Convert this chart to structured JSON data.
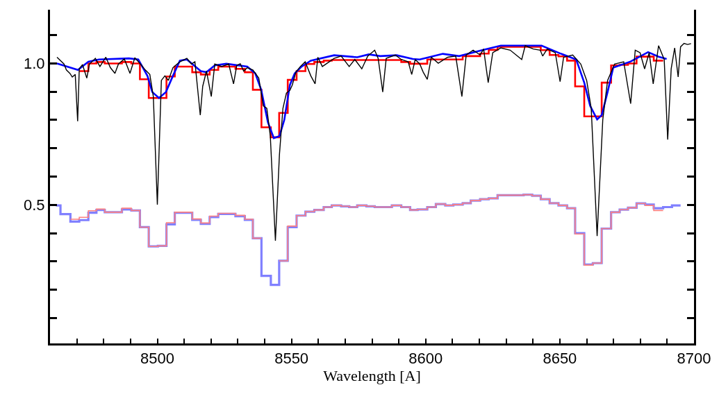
{
  "chart_data": {
    "type": "line",
    "xlabel": "Wavelength [A]",
    "xlim": [
      8460,
      8700
    ],
    "ylim": [
      0.01,
      1.19
    ],
    "xticks": [
      {
        "value": 8470,
        "label": null
      },
      {
        "value": 8480,
        "label": null
      },
      {
        "value": 8490,
        "label": null
      },
      8500,
      {
        "value": 8510,
        "label": null
      },
      {
        "value": 8520,
        "label": null
      },
      {
        "value": 8530,
        "label": null
      },
      {
        "value": 8540,
        "label": null
      },
      8550,
      {
        "value": 8560,
        "label": null
      },
      {
        "value": 8570,
        "label": null
      },
      {
        "value": 8580,
        "label": null
      },
      {
        "value": 8590,
        "label": null
      },
      8600,
      {
        "value": 8610,
        "label": null
      },
      {
        "value": 8620,
        "label": null
      },
      {
        "value": 8630,
        "label": null
      },
      {
        "value": 8640,
        "label": null
      },
      8650,
      {
        "value": 8660,
        "label": null
      },
      {
        "value": 8670,
        "label": null
      },
      {
        "value": 8680,
        "label": null
      },
      {
        "value": 8690,
        "label": null
      },
      8700
    ],
    "yticks": [
      {
        "value": 0.1,
        "label": null
      },
      {
        "value": 0.2,
        "label": null
      },
      {
        "value": 0.3,
        "label": null
      },
      {
        "value": 0.4,
        "label": null
      },
      {
        "value": 0.5,
        "label": "0.5"
      },
      {
        "value": 0.6,
        "label": null
      },
      {
        "value": 0.7,
        "label": null
      },
      {
        "value": 0.8,
        "label": null
      },
      {
        "value": 0.9,
        "label": null
      },
      {
        "value": 1.0,
        "label": "1.0"
      },
      {
        "value": 1.1,
        "label": null
      }
    ],
    "marker": "none",
    "line_style": "solid",
    "series": [
      {
        "type": "step",
        "color": "#8080ff",
        "x": [
          8462.2,
          8463.9,
          8467.6,
          8470.9,
          8474.3,
          8477.3,
          8480.4,
          8486.8,
          8490.3,
          8493.5,
          8496.8,
          8500.2,
          8503.4,
          8506.5,
          8513.0,
          8516.2,
          8519.5,
          8522.7,
          8529.1,
          8532.6,
          8535.6,
          8538.8,
          8542.3,
          8545.4,
          8548.6,
          8551.9,
          8555.2,
          8558.5,
          8562.0,
          8565.0,
          8568.5,
          8571.5,
          8574.5,
          8577.9,
          8581.0,
          8587.4,
          8590.9,
          8594.2,
          8597.0,
          8600.6,
          8603.8,
          8607.3,
          8610.3,
          8613.8,
          8616.8,
          8620.3,
          8623.5,
          8626.8,
          8636.5,
          8639.7,
          8642.9,
          8646.2,
          8649.5,
          8652.7,
          8655.7,
          8659.1,
          8662.3,
          8665.6,
          8669.1,
          8672.3,
          8675.4,
          8678.6,
          8681.8,
          8685.0,
          8688.5,
          8691.8,
          8695.0
        ],
        "values": [
          0.498,
          0.467,
          0.441,
          0.446,
          0.472,
          0.482,
          0.474,
          0.484,
          0.48,
          0.421,
          0.353,
          0.355,
          0.431,
          0.472,
          0.447,
          0.433,
          0.457,
          0.468,
          0.46,
          0.447,
          0.382,
          0.249,
          0.217,
          0.302,
          0.421,
          0.462,
          0.476,
          0.482,
          0.492,
          0.498,
          0.495,
          0.492,
          0.498,
          0.495,
          0.492,
          0.498,
          0.492,
          0.482,
          0.484,
          0.492,
          0.503,
          0.498,
          0.501,
          0.506,
          0.515,
          0.52,
          0.523,
          0.534,
          0.536,
          0.532,
          0.52,
          0.506,
          0.498,
          0.488,
          0.4,
          0.289,
          0.294,
          0.416,
          0.474,
          0.483,
          0.49,
          0.505,
          0.501,
          0.488,
          0.492,
          0.498,
          0.498
        ]
      },
      {
        "type": "step",
        "color": "#ff8080",
        "x": [
          8467.6,
          8470.9,
          8474.3,
          8477.3,
          8480.4,
          8486.8,
          8490.3,
          8493.5,
          8496.8,
          8500.2,
          8503.4,
          8506.5,
          8513.0,
          8516.2,
          8519.5,
          8522.7,
          8529.1,
          8532.6,
          8535.6,
          8538.8,
          8542.3,
          8545.4,
          8548.6,
          8551.9,
          8555.2,
          8558.5,
          8562.0,
          8565.0,
          8568.5,
          8571.5,
          8574.5,
          8577.9,
          8581.0,
          8587.4,
          8590.9,
          8594.2,
          8597.0,
          8600.6,
          8603.8,
          8607.3,
          8610.3,
          8613.8,
          8616.8,
          8620.3,
          8623.5,
          8626.8,
          8636.5,
          8639.7,
          8642.9,
          8646.2,
          8649.5,
          8652.7,
          8655.7,
          8659.1,
          8662.3,
          8665.6,
          8669.1,
          8672.3,
          8675.4,
          8678.6,
          8681.8,
          8685.0,
          8688.5
        ],
        "values": [
          0.449,
          0.456,
          0.479,
          0.485,
          0.474,
          0.488,
          0.48,
          0.421,
          0.353,
          0.355,
          0.437,
          0.474,
          0.45,
          0.436,
          0.46,
          0.47,
          0.463,
          0.449,
          0.382,
          null,
          null,
          0.302,
          0.425,
          0.462,
          0.476,
          0.482,
          0.492,
          0.498,
          0.495,
          0.492,
          0.498,
          0.495,
          0.492,
          0.498,
          0.492,
          0.482,
          0.484,
          0.492,
          0.503,
          0.498,
          0.501,
          0.506,
          0.515,
          0.52,
          0.523,
          0.534,
          0.536,
          0.532,
          0.52,
          0.506,
          0.498,
          0.488,
          0.397,
          0.287,
          0.294,
          0.416,
          0.474,
          0.483,
          0.49,
          0.505,
          0.498,
          0.48,
          0.48
        ]
      },
      {
        "type": "step",
        "color": "#ff0000",
        "x": [
          8470.9,
          8474.3,
          8477.3,
          8480.4,
          8486.8,
          8490.3,
          8493.5,
          8496.8,
          8500.2,
          8503.4,
          8506.5,
          8513.0,
          8516.2,
          8519.5,
          8522.7,
          8529.1,
          8532.6,
          8535.6,
          8538.8,
          8542.3,
          8545.4,
          8548.6,
          8551.9,
          8555.2,
          8558.5,
          8562.0,
          8565.0,
          8581.0,
          8590.9,
          8594.2,
          8600.6,
          8613.8,
          8620.3,
          8623.5,
          8626.8,
          8642.9,
          8646.2,
          8649.5,
          8652.7,
          8655.7,
          8659.1,
          8665.6,
          8669.1,
          8672.3,
          8675.4,
          8678.6,
          8685.0,
          8688.5
        ],
        "values": [
          0.973,
          1.0,
          1.005,
          1.0,
          1.005,
          1.0,
          0.944,
          0.878,
          0.878,
          0.954,
          0.989,
          0.969,
          0.961,
          0.977,
          0.989,
          0.981,
          0.969,
          0.907,
          0.774,
          0.739,
          0.825,
          0.942,
          0.973,
          0.998,
          1.005,
          1.01,
          1.012,
          1.012,
          1.005,
          0.999,
          1.014,
          1.026,
          1.035,
          1.048,
          1.059,
          1.047,
          1.03,
          1.025,
          1.01,
          0.919,
          0.813,
          0.932,
          0.993,
          0.995,
          1.0,
          1.024,
          1.01,
          1.01
        ]
      },
      {
        "color": "#0000ff",
        "x": [
          8462.6,
          8470.4,
          8474.3,
          8478.2,
          8489.4,
          8492.9,
          8496.3,
          8498.1,
          8500.6,
          8503.2,
          8505.8,
          8508.4,
          8511.0,
          8516.2,
          8518.3,
          8521.4,
          8525.7,
          8533.5,
          8536.5,
          8538.7,
          8541.2,
          8543.4,
          8545.5,
          8547.3,
          8549.4,
          8551.2,
          8553.8,
          8557.2,
          8565.9,
          8574.5,
          8578.8,
          8583.1,
          8589.2,
          8595.2,
          8597.8,
          8606.4,
          8612.5,
          8621.1,
          8628.0,
          8643.2,
          8650.5,
          8656.1,
          8659.1,
          8661.3,
          8663.9,
          8665.6,
          8667.8,
          8669.9,
          8676.4,
          8682.9,
          8686.8,
          8689.8
        ],
        "values": [
          1.0,
          0.977,
          1.006,
          1.014,
          1.018,
          1.014,
          0.956,
          0.899,
          0.878,
          0.899,
          0.956,
          1.01,
          1.014,
          0.973,
          0.969,
          0.993,
          0.999,
          0.989,
          0.965,
          0.907,
          0.792,
          0.736,
          0.743,
          0.8,
          0.924,
          0.965,
          0.989,
          1.01,
          1.029,
          1.022,
          1.032,
          1.026,
          1.029,
          1.016,
          1.014,
          1.034,
          1.026,
          1.047,
          1.063,
          1.063,
          1.034,
          1.014,
          0.932,
          0.85,
          0.802,
          0.817,
          0.899,
          0.985,
          1.007,
          1.04,
          1.024,
          1.016
        ]
      },
      {
        "color": "#000000",
        "x": [
          8462.6,
          8465.2,
          8466.1,
          8467.4,
          8468.3,
          8469.4,
          8470.3,
          8470.9,
          8472.1,
          8473.7,
          8474.7,
          8476.9,
          8478.6,
          8480.8,
          8482.5,
          8484.2,
          8485.5,
          8487.7,
          8489.8,
          8491.6,
          8493.7,
          8495.5,
          8497.2,
          8498.5,
          8500.0,
          8501.5,
          8502.8,
          8504.1,
          8505.8,
          8508.4,
          8511.0,
          8512.7,
          8514.0,
          8516.0,
          8516.9,
          8518.3,
          8520.1,
          8521.4,
          8524.0,
          8526.6,
          8528.4,
          8529.6,
          8530.9,
          8532.2,
          8533.5,
          8535.6,
          8537.8,
          8539.5,
          8540.8,
          8542.1,
          8544.0,
          8545.5,
          8546.8,
          8548.1,
          8549.4,
          8550.3,
          8551.6,
          8553.3,
          8555.1,
          8557.2,
          8558.8,
          8559.8,
          8561.5,
          8565.9,
          8568.5,
          8571.5,
          8573.6,
          8576.2,
          8578.4,
          8581.0,
          8582.3,
          8584.0,
          8585.3,
          8588.7,
          8590.9,
          8593.5,
          8594.8,
          8596.1,
          8597.8,
          8599.1,
          8600.6,
          8602.1,
          8604.7,
          8608.2,
          8611.2,
          8613.5,
          8615.1,
          8617.7,
          8620.3,
          8621.6,
          8623.3,
          8625.0,
          8628.0,
          8631.5,
          8635.8,
          8637.1,
          8640.1,
          8642.7,
          8643.6,
          8645.3,
          8648.3,
          8650.1,
          8651.4,
          8654.8,
          8657.8,
          8660.0,
          8661.7,
          8663.9,
          8666.0,
          8667.8,
          8670.4,
          8673.8,
          8676.4,
          8678.1,
          8679.9,
          8681.6,
          8683.3,
          8684.8,
          8686.8,
          8688.9,
          8690.2,
          8691.5,
          8692.8,
          8694.1,
          8695.0,
          8696.3,
          8697.6,
          8698.9
        ],
        "values": [
          1.022,
          0.998,
          0.977,
          0.965,
          0.952,
          0.961,
          0.796,
          0.981,
          0.996,
          0.948,
          0.998,
          1.018,
          0.989,
          1.022,
          0.985,
          0.965,
          0.998,
          1.016,
          0.965,
          1.02,
          0.998,
          0.977,
          0.961,
          0.883,
          0.501,
          0.94,
          0.956,
          0.94,
          0.985,
          1.006,
          1.018,
          0.998,
          1.006,
          0.817,
          0.919,
          0.973,
          0.883,
          0.998,
          0.989,
          0.998,
          0.928,
          0.993,
          0.999,
          0.973,
          0.985,
          0.977,
          0.948,
          0.85,
          0.841,
          0.743,
          0.373,
          0.677,
          0.841,
          0.895,
          0.905,
          0.924,
          0.969,
          0.989,
          1.006,
          0.956,
          0.928,
          1.022,
          0.989,
          1.018,
          1.026,
          0.989,
          1.014,
          0.981,
          1.026,
          1.047,
          1.018,
          0.899,
          1.018,
          1.03,
          1.014,
          1.006,
          0.961,
          1.014,
          0.998,
          0.969,
          0.944,
          1.022,
          1.001,
          1.022,
          1.026,
          0.883,
          1.03,
          1.047,
          1.03,
          1.051,
          0.932,
          1.038,
          1.055,
          1.047,
          1.014,
          1.063,
          1.051,
          1.047,
          1.026,
          1.051,
          1.038,
          0.936,
          1.022,
          1.03,
          0.998,
          0.94,
          0.841,
          0.39,
          0.8,
          0.94,
          0.998,
          1.006,
          0.858,
          1.047,
          1.038,
          0.981,
          1.038,
          0.928,
          1.063,
          1.014,
          0.731,
          0.981,
          1.055,
          0.952,
          1.059,
          1.071,
          1.067,
          1.07
        ]
      }
    ]
  }
}
